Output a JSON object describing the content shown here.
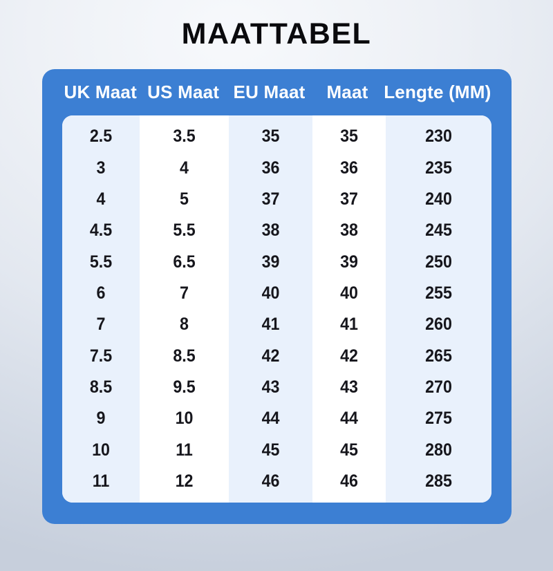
{
  "page": {
    "title": "MAATTABEL"
  },
  "colors": {
    "accent_blue": "#3c7fd3",
    "stripe_blue": "#e9f1fc",
    "panel_white": "#ffffff",
    "header_text": "#ffffff",
    "cell_text": "#16161c",
    "title_text": "#0a0a0d"
  },
  "chart_data": {
    "type": "table",
    "title": "MAATTABEL",
    "columns": [
      "UK Maat",
      "US Maat",
      "EU Maat",
      "Maat",
      "Lengte (MM)"
    ],
    "rows": [
      [
        "2.5",
        "3.5",
        "35",
        "35",
        "230"
      ],
      [
        "3",
        "4",
        "36",
        "36",
        "235"
      ],
      [
        "4",
        "5",
        "37",
        "37",
        "240"
      ],
      [
        "4.5",
        "5.5",
        "38",
        "38",
        "245"
      ],
      [
        "5.5",
        "6.5",
        "39",
        "39",
        "250"
      ],
      [
        "6",
        "7",
        "40",
        "40",
        "255"
      ],
      [
        "7",
        "8",
        "41",
        "41",
        "260"
      ],
      [
        "7.5",
        "8.5",
        "42",
        "42",
        "265"
      ],
      [
        "8.5",
        "9.5",
        "43",
        "43",
        "270"
      ],
      [
        "9",
        "10",
        "44",
        "44",
        "275"
      ],
      [
        "10",
        "11",
        "45",
        "45",
        "280"
      ],
      [
        "11",
        "12",
        "46",
        "46",
        "285"
      ]
    ],
    "layout": {
      "column_striping": "odd columns tinted light blue",
      "header_position": "top, on blue frame"
    }
  }
}
